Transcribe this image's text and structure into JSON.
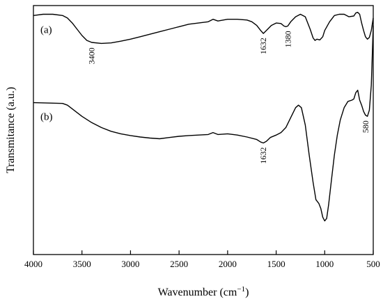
{
  "chart_data": {
    "type": "line",
    "xlabel": "Wavenumber (cm",
    "xlabel_sup": "−1",
    "xlabel_close": ")",
    "ylabel": "Transmitance (a.u.)",
    "xlim": [
      4000,
      500
    ],
    "x_reversed": true,
    "ylim": [
      0,
      1
    ],
    "grid": false,
    "x_ticks": [
      4000,
      3500,
      3000,
      2500,
      2000,
      1500,
      1000,
      500
    ],
    "series": [
      {
        "name": "(a)",
        "points": [
          [
            4000,
            0.96
          ],
          [
            3900,
            0.965
          ],
          [
            3800,
            0.965
          ],
          [
            3700,
            0.96
          ],
          [
            3650,
            0.95
          ],
          [
            3600,
            0.93
          ],
          [
            3550,
            0.905
          ],
          [
            3500,
            0.88
          ],
          [
            3450,
            0.86
          ],
          [
            3400,
            0.852
          ],
          [
            3300,
            0.848
          ],
          [
            3200,
            0.85
          ],
          [
            3100,
            0.857
          ],
          [
            3000,
            0.865
          ],
          [
            2900,
            0.875
          ],
          [
            2800,
            0.885
          ],
          [
            2700,
            0.895
          ],
          [
            2600,
            0.905
          ],
          [
            2500,
            0.915
          ],
          [
            2400,
            0.925
          ],
          [
            2300,
            0.93
          ],
          [
            2200,
            0.935
          ],
          [
            2150,
            0.945
          ],
          [
            2100,
            0.938
          ],
          [
            2000,
            0.945
          ],
          [
            1900,
            0.945
          ],
          [
            1800,
            0.942
          ],
          [
            1750,
            0.935
          ],
          [
            1700,
            0.92
          ],
          [
            1660,
            0.9
          ],
          [
            1632,
            0.888
          ],
          [
            1600,
            0.9
          ],
          [
            1550,
            0.92
          ],
          [
            1500,
            0.93
          ],
          [
            1450,
            0.928
          ],
          [
            1420,
            0.918
          ],
          [
            1400,
            0.915
          ],
          [
            1380,
            0.918
          ],
          [
            1350,
            0.935
          ],
          [
            1300,
            0.955
          ],
          [
            1250,
            0.965
          ],
          [
            1200,
            0.955
          ],
          [
            1150,
            0.905
          ],
          [
            1120,
            0.87
          ],
          [
            1100,
            0.86
          ],
          [
            1080,
            0.865
          ],
          [
            1050,
            0.862
          ],
          [
            1020,
            0.875
          ],
          [
            1000,
            0.9
          ],
          [
            950,
            0.935
          ],
          [
            900,
            0.96
          ],
          [
            850,
            0.965
          ],
          [
            800,
            0.965
          ],
          [
            750,
            0.955
          ],
          [
            700,
            0.958
          ],
          [
            680,
            0.97
          ],
          [
            660,
            0.973
          ],
          [
            640,
            0.965
          ],
          [
            620,
            0.93
          ],
          [
            600,
            0.9
          ],
          [
            580,
            0.875
          ],
          [
            560,
            0.865
          ],
          [
            540,
            0.872
          ],
          [
            520,
            0.9
          ],
          [
            500,
            0.95
          ]
        ]
      },
      {
        "name": "(b)",
        "points": [
          [
            4000,
            0.61
          ],
          [
            3800,
            0.608
          ],
          [
            3700,
            0.607
          ],
          [
            3650,
            0.6
          ],
          [
            3600,
            0.585
          ],
          [
            3500,
            0.555
          ],
          [
            3400,
            0.53
          ],
          [
            3300,
            0.51
          ],
          [
            3200,
            0.495
          ],
          [
            3100,
            0.485
          ],
          [
            3000,
            0.478
          ],
          [
            2900,
            0.472
          ],
          [
            2800,
            0.468
          ],
          [
            2700,
            0.465
          ],
          [
            2600,
            0.47
          ],
          [
            2500,
            0.475
          ],
          [
            2400,
            0.478
          ],
          [
            2300,
            0.48
          ],
          [
            2200,
            0.482
          ],
          [
            2150,
            0.49
          ],
          [
            2100,
            0.482
          ],
          [
            2000,
            0.485
          ],
          [
            1900,
            0.48
          ],
          [
            1800,
            0.472
          ],
          [
            1700,
            0.462
          ],
          [
            1660,
            0.452
          ],
          [
            1632,
            0.448
          ],
          [
            1600,
            0.455
          ],
          [
            1560,
            0.47
          ],
          [
            1500,
            0.48
          ],
          [
            1450,
            0.49
          ],
          [
            1400,
            0.51
          ],
          [
            1350,
            0.55
          ],
          [
            1300,
            0.59
          ],
          [
            1270,
            0.6
          ],
          [
            1240,
            0.59
          ],
          [
            1200,
            0.52
          ],
          [
            1160,
            0.4
          ],
          [
            1120,
            0.29
          ],
          [
            1090,
            0.22
          ],
          [
            1060,
            0.205
          ],
          [
            1040,
            0.185
          ],
          [
            1020,
            0.15
          ],
          [
            1000,
            0.135
          ],
          [
            980,
            0.145
          ],
          [
            960,
            0.2
          ],
          [
            930,
            0.3
          ],
          [
            900,
            0.4
          ],
          [
            870,
            0.48
          ],
          [
            840,
            0.54
          ],
          [
            800,
            0.59
          ],
          [
            760,
            0.615
          ],
          [
            720,
            0.62
          ],
          [
            700,
            0.625
          ],
          [
            680,
            0.65
          ],
          [
            660,
            0.66
          ],
          [
            640,
            0.62
          ],
          [
            620,
            0.6
          ],
          [
            600,
            0.575
          ],
          [
            580,
            0.56
          ],
          [
            560,
            0.555
          ],
          [
            540,
            0.58
          ],
          [
            520,
            0.68
          ],
          [
            510,
            0.8
          ],
          [
            500,
            0.92
          ]
        ]
      }
    ],
    "annotations": [
      {
        "text": "3400",
        "x": 3400,
        "y": 0.848,
        "series": "(a)"
      },
      {
        "text": "1632",
        "x": 1632,
        "y": 0.888,
        "series": "(a)"
      },
      {
        "text": "1380",
        "x": 1380,
        "y": 0.915,
        "series": "(a)"
      },
      {
        "text": "1632",
        "x": 1632,
        "y": 0.448,
        "series": "(b)"
      },
      {
        "text": "580",
        "x": 580,
        "y": 0.555,
        "series": "(b)"
      }
    ]
  }
}
